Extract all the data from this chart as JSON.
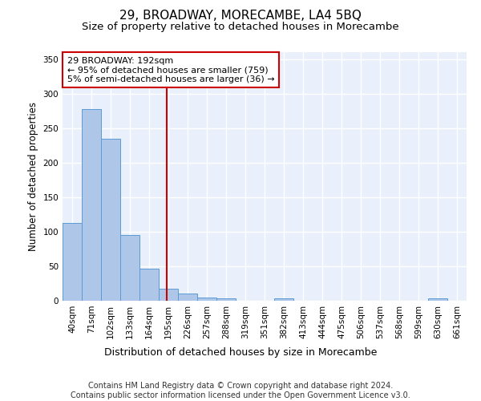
{
  "title": "29, BROADWAY, MORECAMBE, LA4 5BQ",
  "subtitle": "Size of property relative to detached houses in Morecambe",
  "xlabel": "Distribution of detached houses by size in Morecambe",
  "ylabel": "Number of detached properties",
  "categories": [
    "40sqm",
    "71sqm",
    "102sqm",
    "133sqm",
    "164sqm",
    "195sqm",
    "226sqm",
    "257sqm",
    "288sqm",
    "319sqm",
    "351sqm",
    "382sqm",
    "413sqm",
    "444sqm",
    "475sqm",
    "506sqm",
    "537sqm",
    "568sqm",
    "599sqm",
    "630sqm",
    "661sqm"
  ],
  "values": [
    113,
    278,
    235,
    95,
    47,
    18,
    11,
    5,
    4,
    0,
    0,
    4,
    0,
    0,
    0,
    0,
    0,
    0,
    0,
    3,
    0
  ],
  "bar_color": "#aec6e8",
  "bar_edge_color": "#5b9bd5",
  "vline_color": "#cc0000",
  "annotation_text": "29 BROADWAY: 192sqm\n← 95% of detached houses are smaller (759)\n5% of semi-detached houses are larger (36) →",
  "annotation_box_color": "#ffffff",
  "annotation_box_edge": "#cc0000",
  "ylim": [
    0,
    360
  ],
  "yticks": [
    0,
    50,
    100,
    150,
    200,
    250,
    300,
    350
  ],
  "bg_color": "#eaf0fb",
  "footer_text": "Contains HM Land Registry data © Crown copyright and database right 2024.\nContains public sector information licensed under the Open Government Licence v3.0.",
  "title_fontsize": 11,
  "subtitle_fontsize": 9.5,
  "xlabel_fontsize": 9,
  "ylabel_fontsize": 8.5,
  "tick_fontsize": 7.5,
  "annotation_fontsize": 8,
  "footer_fontsize": 7
}
